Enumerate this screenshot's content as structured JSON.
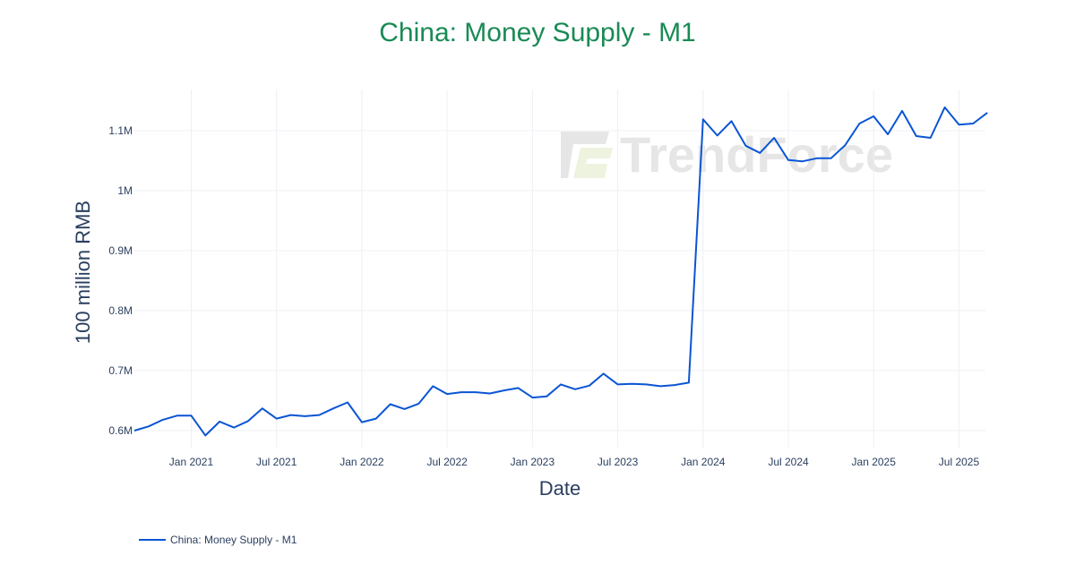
{
  "title": "China: Money Supply - M1",
  "legend": {
    "label": "China: Money Supply - M1",
    "color": "#0a55d4"
  },
  "watermark": "TrendForce",
  "colors": {
    "title": "#1a8a55",
    "line": "#0a55d4",
    "grid": "#eef0f4",
    "text": "#2a3f5f"
  },
  "chart_data": {
    "type": "line",
    "title": "China: Money Supply - M1",
    "xlabel": "Date",
    "ylabel": "100 million RMB",
    "ylim": [
      570000,
      1160000
    ],
    "y_ticks": [
      {
        "value": 600000,
        "label": "0.6M"
      },
      {
        "value": 700000,
        "label": "0.7M"
      },
      {
        "value": 800000,
        "label": "0.8M"
      },
      {
        "value": 900000,
        "label": "0.9M"
      },
      {
        "value": 1000000,
        "label": "1M"
      },
      {
        "value": 1100000,
        "label": "1.1M"
      }
    ],
    "x_ticks": [
      {
        "index": 4,
        "label": "Jan 2021"
      },
      {
        "index": 10,
        "label": "Jul 2021"
      },
      {
        "index": 16,
        "label": "Jan 2022"
      },
      {
        "index": 22,
        "label": "Jul 2022"
      },
      {
        "index": 28,
        "label": "Jan 2023"
      },
      {
        "index": 34,
        "label": "Jul 2023"
      },
      {
        "index": 40,
        "label": "Jan 2024"
      },
      {
        "index": 46,
        "label": "Jul 2024"
      },
      {
        "index": 52,
        "label": "Jan 2025"
      },
      {
        "index": 58,
        "label": "Jul 2025"
      }
    ],
    "grid": true,
    "legend_position": "bottom-left",
    "x": [
      "2020-09",
      "2020-10",
      "2020-11",
      "2020-12",
      "2021-01",
      "2021-02",
      "2021-03",
      "2021-04",
      "2021-05",
      "2021-06",
      "2021-07",
      "2021-08",
      "2021-09",
      "2021-10",
      "2021-11",
      "2021-12",
      "2022-01",
      "2022-02",
      "2022-03",
      "2022-04",
      "2022-05",
      "2022-06",
      "2022-07",
      "2022-08",
      "2022-09",
      "2022-10",
      "2022-11",
      "2022-12",
      "2023-01",
      "2023-02",
      "2023-03",
      "2023-04",
      "2023-05",
      "2023-06",
      "2023-07",
      "2023-08",
      "2023-09",
      "2023-10",
      "2023-11",
      "2023-12",
      "2024-01",
      "2024-02",
      "2024-03",
      "2024-04",
      "2024-05",
      "2024-06",
      "2024-07",
      "2024-08",
      "2024-09",
      "2024-10",
      "2024-11",
      "2024-12",
      "2025-01",
      "2025-02",
      "2025-03",
      "2025-04",
      "2025-05",
      "2025-06",
      "2025-07",
      "2025-08",
      "2025-09"
    ],
    "series": [
      {
        "name": "China: Money Supply - M1",
        "values": [
          600000,
          607000,
          618000,
          625000,
          625000,
          592000,
          615000,
          605000,
          616000,
          637000,
          620000,
          626000,
          624000,
          626000,
          637000,
          647000,
          614000,
          620000,
          644000,
          636000,
          645000,
          674000,
          661000,
          664000,
          664000,
          662000,
          667000,
          671000,
          655000,
          657000,
          677000,
          669000,
          675000,
          695000,
          677000,
          678000,
          677000,
          674000,
          676000,
          680000,
          1119000,
          1092000,
          1116000,
          1075000,
          1063000,
          1088000,
          1051000,
          1049000,
          1054000,
          1054000,
          1076000,
          1112000,
          1124000,
          1094000,
          1133000,
          1091000,
          1088000,
          1139000,
          1110000,
          1112000,
          1130000
        ]
      }
    ]
  }
}
